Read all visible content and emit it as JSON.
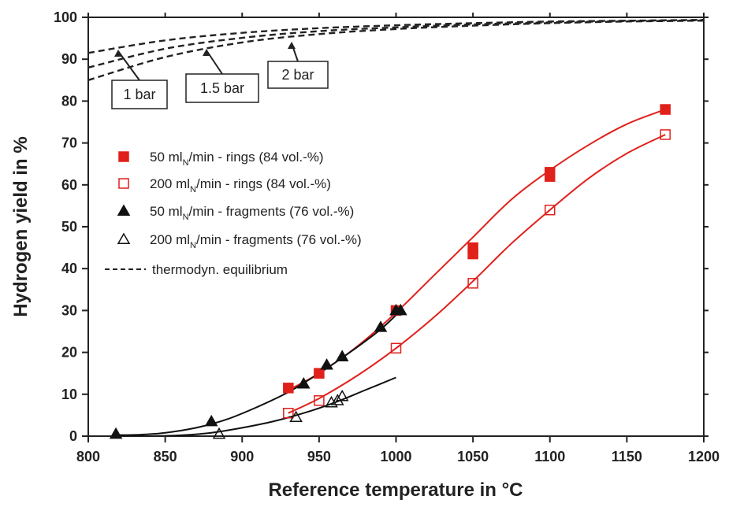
{
  "chart_data": {
    "type": "scatter",
    "title": "",
    "xlabel": "Reference temperature in °C",
    "ylabel": "Hydrogen yield in %",
    "xlim": [
      800,
      1200
    ],
    "ylim": [
      0,
      100
    ],
    "x_ticks": [
      "800",
      "850",
      "900",
      "950",
      "1000",
      "1050",
      "1100",
      "1150",
      "1200"
    ],
    "y_ticks": [
      "0",
      "10",
      "20",
      "30",
      "40",
      "50",
      "60",
      "70",
      "80",
      "90",
      "100"
    ],
    "grid": false,
    "legend_position": "left",
    "colors": {
      "rings": "#e0201b",
      "fragments": "#111111",
      "equilibrium": "#222222"
    },
    "series": [
      {
        "name": "50 mlN/min - rings (84 vol.-%)",
        "label_main": "50 ml",
        "label_sub": "N",
        "label_rest": "/min - rings (84 vol.-%)",
        "marker": "filled-square",
        "color": "#e0201b",
        "x": [
          930,
          950,
          1000,
          1050,
          1050,
          1100,
          1100,
          1175
        ],
        "y": [
          11.5,
          15,
          30,
          43.5,
          45,
          62,
          63,
          78
        ],
        "fit_x": [
          930,
          950,
          975,
          1000,
          1025,
          1050,
          1075,
          1100,
          1125,
          1150,
          1175
        ],
        "fit_y": [
          11,
          15,
          21.5,
          29.5,
          38.5,
          47.5,
          56.5,
          63.5,
          69.5,
          74.5,
          78
        ]
      },
      {
        "name": "200 mlN/min - rings (84 vol.-%)",
        "label_main": "200 ml",
        "label_sub": "N",
        "label_rest": "/min - rings (84 vol.-%)",
        "marker": "open-square",
        "color": "#e0201b",
        "x": [
          930,
          950,
          1000,
          1050,
          1100,
          1175
        ],
        "y": [
          5.5,
          8.5,
          21,
          36.5,
          54,
          72
        ],
        "fit_x": [
          930,
          950,
          975,
          1000,
          1025,
          1050,
          1075,
          1100,
          1125,
          1150,
          1175
        ],
        "fit_y": [
          5.5,
          9,
          14.5,
          21,
          28.5,
          37,
          46,
          54,
          61.5,
          67.5,
          72
        ]
      },
      {
        "name": "50 mlN/min - fragments (76 vol.-%)",
        "label_main": "50 ml",
        "label_sub": "N",
        "label_rest": "/min - fragments (76 vol.-%)",
        "marker": "filled-triangle",
        "color": "#111111",
        "x": [
          818,
          880,
          940,
          955,
          965,
          990,
          1000,
          1003
        ],
        "y": [
          0.5,
          3.5,
          12.5,
          17,
          19,
          26,
          30,
          30
        ],
        "fit_x": [
          818,
          830,
          850,
          870,
          890,
          910,
          930,
          950,
          970,
          990,
          1003
        ],
        "fit_y": [
          0.3,
          0.3,
          0.8,
          2,
          4,
          7,
          10.5,
          15,
          20,
          25.5,
          30
        ]
      },
      {
        "name": "200 mlN/min - fragments (76 vol.-%)",
        "label_main": "200 ml",
        "label_sub": "N",
        "label_rest": "/min - fragments (76 vol.-%)",
        "marker": "open-triangle",
        "color": "#111111",
        "x": [
          885,
          935,
          958,
          962,
          965
        ],
        "y": [
          0.5,
          4.5,
          8,
          8.5,
          9.5
        ],
        "fit_x": [
          818,
          840,
          860,
          880,
          900,
          920,
          940,
          960,
          980,
          1000
        ],
        "fit_y": [
          0,
          0,
          0.2,
          0.8,
          2,
          3.5,
          5.5,
          8,
          11,
          14
        ]
      },
      {
        "name": "thermodyn. equilibrium",
        "marker": "dashed-line",
        "color": "#222222",
        "curves": [
          {
            "label": "1 bar",
            "x": [
              800,
              850,
              900,
              950,
              1000,
              1050,
              1100,
              1150,
              1200
            ],
            "y": [
              91.5,
              94.5,
              96.3,
              97.4,
              98.1,
              98.6,
              99.0,
              99.2,
              99.4
            ]
          },
          {
            "label": "1.5 bar",
            "x": [
              800,
              850,
              900,
              950,
              1000,
              1050,
              1100,
              1150,
              1200
            ],
            "y": [
              88,
              92.5,
              95.1,
              96.7,
              97.6,
              98.3,
              98.8,
              99.1,
              99.3
            ]
          },
          {
            "label": "2 bar",
            "x": [
              800,
              850,
              900,
              950,
              1000,
              1050,
              1100,
              1150,
              1200
            ],
            "y": [
              85,
              90.5,
              94.0,
              96.0,
              97.2,
              98.0,
              98.6,
              99.0,
              99.2
            ]
          }
        ]
      }
    ],
    "callouts": [
      "1 bar",
      "1.5 bar",
      "2 bar"
    ]
  }
}
